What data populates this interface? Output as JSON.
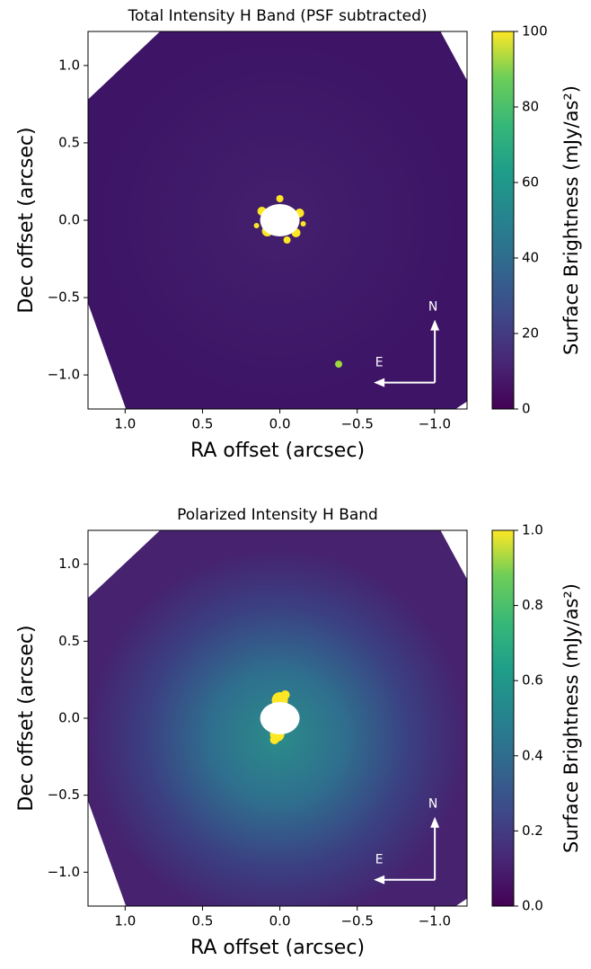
{
  "chart_data": [
    {
      "type": "image",
      "title": "Total Intensity H Band (PSF subtracted)",
      "xlabel": "RA offset (arcsec)",
      "ylabel": "Dec offset (arcsec)",
      "xlim": [
        1.24,
        -1.21
      ],
      "ylim": [
        -1.22,
        1.22
      ],
      "xticks": [
        {
          "value": 1,
          "label": "1.0"
        },
        0.5,
        {
          "value": 0,
          "label": "0.0"
        },
        {
          "value": -0.5,
          "label": "−0.5"
        },
        {
          "value": -1,
          "label": "−1.0"
        }
      ],
      "yticks": [
        {
          "value": -1,
          "label": "−1.0"
        },
        {
          "value": -0.5,
          "label": "−0.5"
        },
        {
          "value": 0,
          "label": "0.0"
        },
        0.5,
        {
          "value": 1,
          "label": "1.0"
        }
      ],
      "colormap": "viridis",
      "colorbar_label": "Surface Brightness (mJy/as²)",
      "clim": [
        0,
        100
      ],
      "cticks": [
        0,
        20,
        40,
        60,
        80,
        100
      ],
      "compass": {
        "north": "N",
        "east": "E"
      }
    },
    {
      "type": "image",
      "title": "Polarized Intensity H Band",
      "xlabel": "RA offset (arcsec)",
      "ylabel": "Dec offset (arcsec)",
      "xlim": [
        1.24,
        -1.21
      ],
      "ylim": [
        -1.22,
        1.22
      ],
      "xticks": [
        {
          "value": 1,
          "label": "1.0"
        },
        0.5,
        {
          "value": 0,
          "label": "0.0"
        },
        {
          "value": -0.5,
          "label": "−0.5"
        },
        {
          "value": -1,
          "label": "−1.0"
        }
      ],
      "yticks": [
        {
          "value": -1,
          "label": "−1.0"
        },
        {
          "value": -0.5,
          "label": "−0.5"
        },
        {
          "value": 0,
          "label": "0.0"
        },
        0.5,
        {
          "value": 1,
          "label": "1.0"
        }
      ],
      "colormap": "viridis",
      "colorbar_label": "Surface Brightness (mJy/as²)",
      "clim": [
        0,
        1
      ],
      "cticks": [
        {
          "value": 0,
          "label": "0.0"
        },
        0.2,
        0.4,
        0.6,
        0.8,
        {
          "value": 1,
          "label": "1.0"
        }
      ],
      "compass": {
        "north": "N",
        "east": "E"
      }
    }
  ]
}
